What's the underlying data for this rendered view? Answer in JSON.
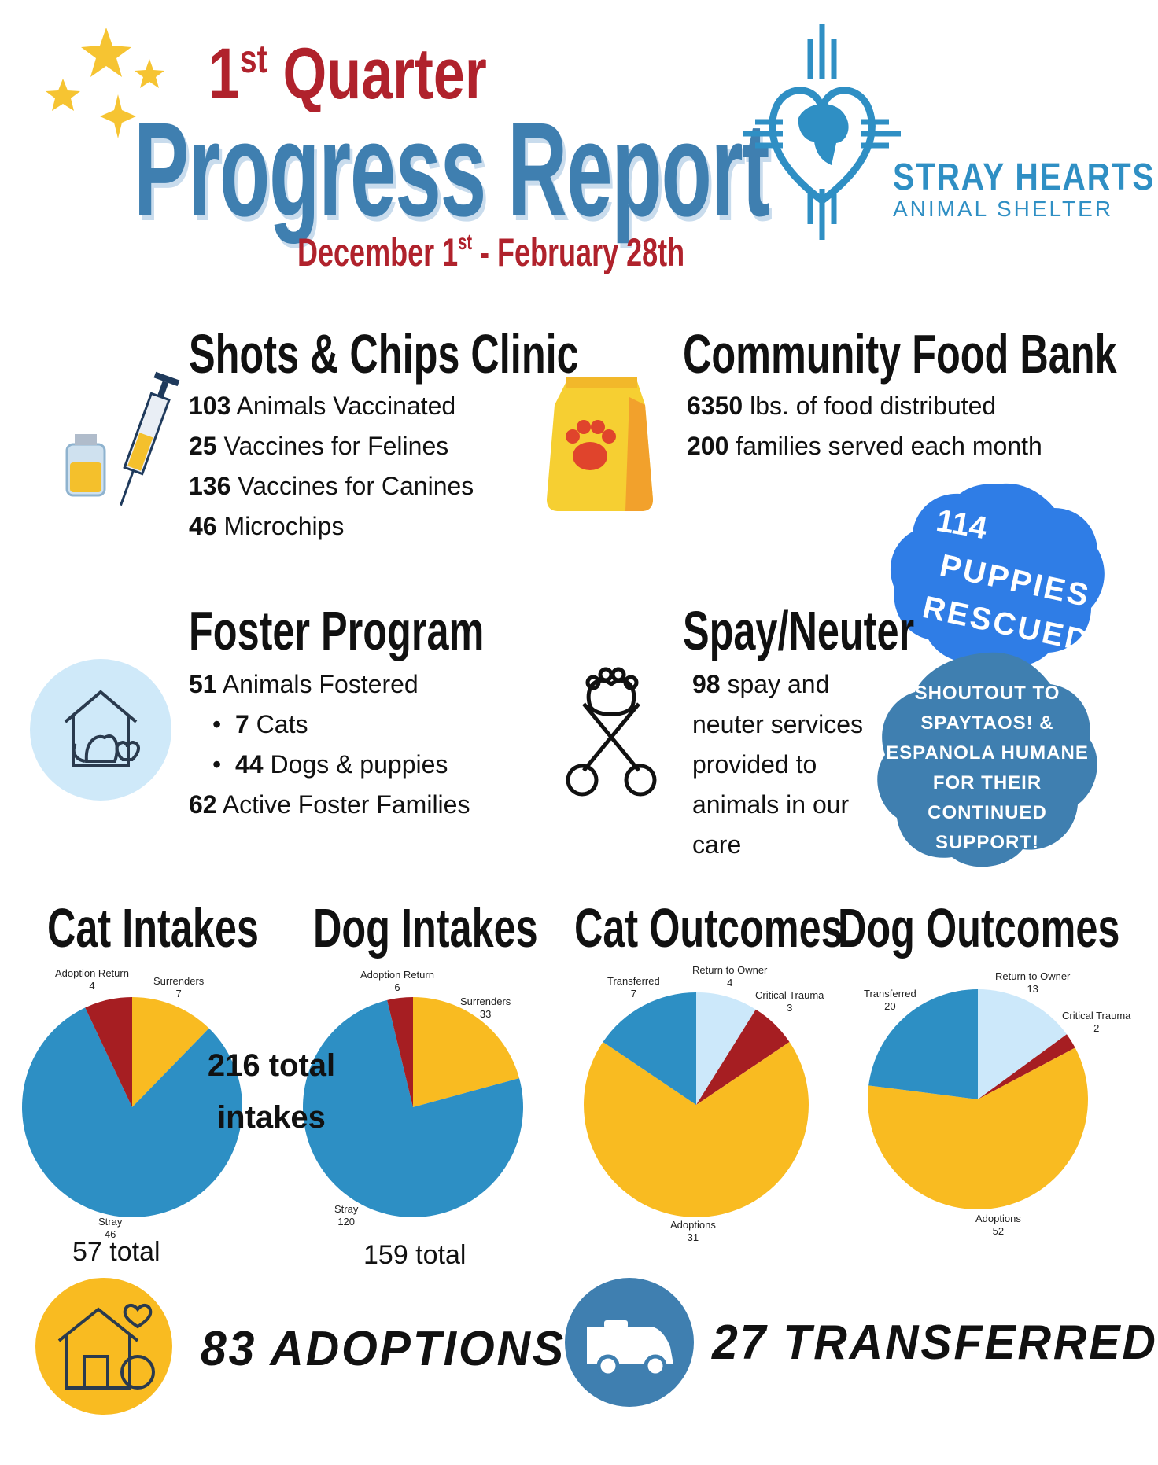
{
  "header": {
    "quarter_num": "1",
    "quarter_sup": "st",
    "quarter_word": "Quarter",
    "title": "Progress Report",
    "date_start": "December 1",
    "date_start_sup": "st",
    "date_end": " - February 28th"
  },
  "logo": {
    "name": "STRAY HEARTS",
    "sub": "ANIMAL SHELTER"
  },
  "colors": {
    "red": "#b0222c",
    "blue": "#3f7fb0",
    "pie_blue": "#2d8fc4",
    "pie_yellow": "#f9bb21",
    "pie_red": "#a61e22",
    "pie_light": "#cce8fa",
    "badge1": "#2f7de6",
    "badge2": "#3f7fb0"
  },
  "clinic": {
    "title": "Shots & Chips Clinic",
    "lines": [
      {
        "num": "103",
        "text": " Animals Vaccinated"
      },
      {
        "num": "25",
        "text": " Vaccines for Felines"
      },
      {
        "num": "136",
        "text": " Vaccines for Canines"
      },
      {
        "num": "46",
        "text": " Microchips"
      }
    ]
  },
  "foodbank": {
    "title": "Community Food Bank",
    "lines": [
      {
        "num": "6350",
        "text": " lbs. of food distributed"
      },
      {
        "num": "200",
        "text": " families served each month"
      }
    ]
  },
  "foster": {
    "title": "Foster Program",
    "line1": {
      "num": "51",
      "text": " Animals Fostered"
    },
    "bullets": [
      {
        "num": "7",
        "text": " Cats"
      },
      {
        "num": "44",
        "text": " Dogs & puppies"
      }
    ],
    "line2": {
      "num": "62",
      "text": " Active Foster Families"
    }
  },
  "spay": {
    "title": "Spay/Neuter",
    "num": "98",
    "lines": [
      " spay and",
      "neuter services",
      "provided to",
      "animals in our",
      "care"
    ]
  },
  "badges": {
    "puppies": [
      "114",
      "PUPPIES",
      "RESCUED"
    ],
    "shoutout": [
      "SHOUTOUT TO",
      "SPAYTAOS! &",
      "ESPANOLA HUMANE",
      "FOR THEIR",
      "CONTINUED",
      "SUPPORT!"
    ]
  },
  "intakes_overlay": [
    "216 total",
    "intakes"
  ],
  "chart_data": [
    {
      "type": "pie",
      "title": "Cat Intakes",
      "total_label": "57 total",
      "slices": [
        {
          "label": "Surrenders",
          "value": 7,
          "color": "#f9bb21"
        },
        {
          "label": "Stray",
          "value": 46,
          "color": "#2d8fc4"
        },
        {
          "label": "Adoption Return",
          "value": 4,
          "color": "#a61e22"
        }
      ]
    },
    {
      "type": "pie",
      "title": "Dog Intakes",
      "total_label": "159 total",
      "slices": [
        {
          "label": "Surrenders",
          "value": 33,
          "color": "#f9bb21"
        },
        {
          "label": "Stray",
          "value": 120,
          "color": "#2d8fc4"
        },
        {
          "label": "Adoption Return",
          "value": 6,
          "color": "#a61e22"
        }
      ]
    },
    {
      "type": "pie",
      "title": "Cat Outcomes",
      "total_label": "",
      "slices": [
        {
          "label": "Return to Owner",
          "value": 4,
          "color": "#cce8fa"
        },
        {
          "label": "Critical Trauma",
          "value": 3,
          "color": "#a61e22"
        },
        {
          "label": "Adoptions",
          "value": 31,
          "color": "#f9bb21"
        },
        {
          "label": "Transferred",
          "value": 7,
          "color": "#2d8fc4"
        }
      ]
    },
    {
      "type": "pie",
      "title": "Dog Outcomes",
      "total_label": "",
      "slices": [
        {
          "label": "Return to Owner",
          "value": 13,
          "color": "#cce8fa"
        },
        {
          "label": "Critical Trauma",
          "value": 2,
          "color": "#a61e22"
        },
        {
          "label": "Adoptions",
          "value": 52,
          "color": "#f9bb21"
        },
        {
          "label": "Transferred",
          "value": 20,
          "color": "#2d8fc4"
        }
      ]
    }
  ],
  "callouts": {
    "adoptions": "83 ADOPTIONS",
    "transferred": "27 TRANSFERRED"
  }
}
